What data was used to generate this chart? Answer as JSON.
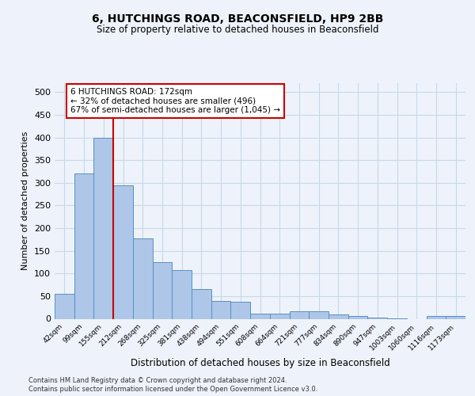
{
  "title1": "6, HUTCHINGS ROAD, BEACONSFIELD, HP9 2BB",
  "title2": "Size of property relative to detached houses in Beaconsfield",
  "xlabel": "Distribution of detached houses by size in Beaconsfield",
  "ylabel": "Number of detached properties",
  "footnote1": "Contains HM Land Registry data © Crown copyright and database right 2024.",
  "footnote2": "Contains public sector information licensed under the Open Government Licence v3.0.",
  "bar_color": "#aec6e8",
  "bar_edge_color": "#5a8fc2",
  "grid_color": "#c8d8e8",
  "vline_color": "#cc0000",
  "vline_x": 2,
  "annotation_text": "6 HUTCHINGS ROAD: 172sqm\n← 32% of detached houses are smaller (496)\n67% of semi-detached houses are larger (1,045) →",
  "annotation_box_color": "#ffffff",
  "annotation_border_color": "#cc0000",
  "categories": [
    "42sqm",
    "99sqm",
    "155sqm",
    "212sqm",
    "268sqm",
    "325sqm",
    "381sqm",
    "438sqm",
    "494sqm",
    "551sqm",
    "608sqm",
    "664sqm",
    "721sqm",
    "777sqm",
    "834sqm",
    "890sqm",
    "947sqm",
    "1003sqm",
    "1060sqm",
    "1116sqm",
    "1173sqm"
  ],
  "values": [
    55,
    320,
    400,
    295,
    178,
    125,
    107,
    65,
    40,
    37,
    11,
    11,
    16,
    16,
    9,
    6,
    2,
    1,
    0,
    6,
    6
  ],
  "ylim": [
    0,
    520
  ],
  "yticks": [
    0,
    50,
    100,
    150,
    200,
    250,
    300,
    350,
    400,
    450,
    500
  ],
  "background_color": "#eef3fb",
  "fig_width": 6.0,
  "fig_height": 5.0
}
